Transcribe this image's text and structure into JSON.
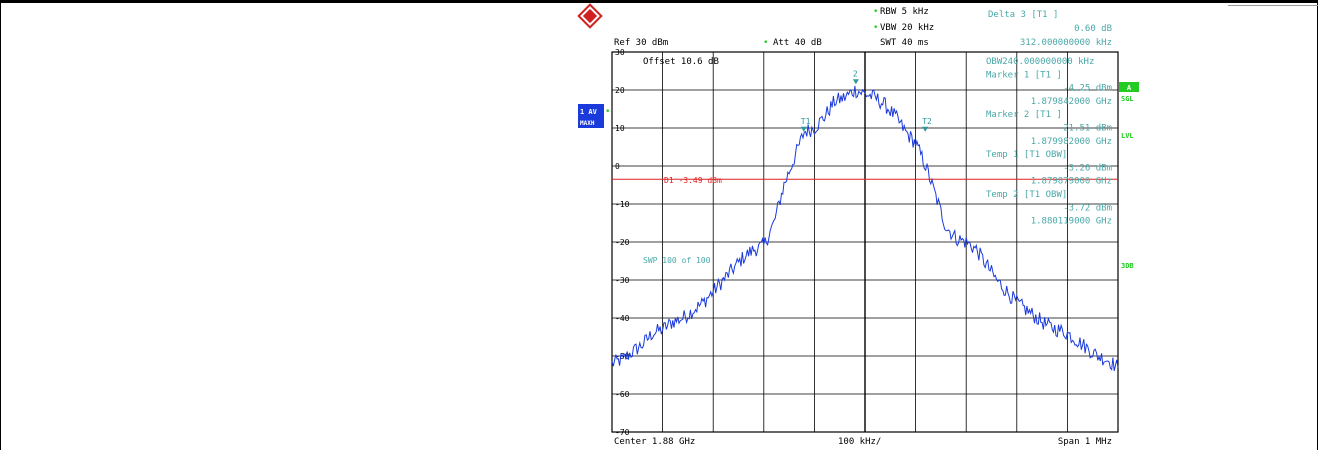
{
  "header": {
    "rbw": "RBW  5 kHz",
    "vbw": "VBW  20 kHz",
    "swt": "SWT  40 ms",
    "ref": "Ref   30 dBm",
    "att": "Att   40 dB",
    "delta_title": "Delta 3 [T1 ]",
    "delta_value": "0.60 dB",
    "delta_freq": "312.000000000 kHz"
  },
  "side_labels": {
    "trace_mode_1": "1 AV",
    "trace_mode_2": "MAXH",
    "a": "A",
    "sgl": "SGL",
    "lvl": "LVL",
    "3db": "3DB"
  },
  "readout": [
    "OBW240.000000000 kHz",
    "Marker 1 [T1 ]",
    "-4.25 dBm",
    "1.879842000 GHz",
    "Marker 2 [T1 ]",
    "21.51 dBm",
    "1.879982000 GHz",
    "Temp 1 [T1 OBW]",
    "-3.26 dBm",
    "1.879879000 GHz",
    "Temp 2 [T1 OBW]",
    "-3.72 dBm",
    "1.880119000 GHz"
  ],
  "plot_text": {
    "offset": "Offset   10.6 dB",
    "d1": "D1 -3.49 dBm",
    "swp": "SWP   100 of   100",
    "marker_t1": "T1",
    "marker_2": "2",
    "marker_t2": "T2"
  },
  "footer": {
    "center": "Center  1.88 GHz",
    "span_per_div": "100 kHz/",
    "span": "Span  1 MHz"
  },
  "colors": {
    "trace": "#1a3adc",
    "display_line": "#e02020",
    "annotation": "#4aa8a8",
    "marker": "#2a9a9a",
    "status_green": "#22cc22",
    "panel_blue": "#1a3adc"
  },
  "chart_data": {
    "type": "line",
    "title": "",
    "xlabel": "",
    "ylabel": "",
    "x_unit": "GHz",
    "y_unit": "dBm",
    "xlim": [
      1.8795,
      1.8805
    ],
    "ylim": [
      -70,
      30
    ],
    "y_ticks": [
      30,
      20,
      10,
      0,
      -10,
      -20,
      -30,
      -40,
      -50,
      -60,
      -70
    ],
    "y_tick_labels": [
      "30",
      "20",
      "10",
      "0",
      "-10",
      "-20",
      "-30",
      "-40",
      "-50",
      "-60",
      "-70"
    ],
    "grid": true,
    "display_line": {
      "label": "D1 -3.49 dBm",
      "y": -3.49
    },
    "markers": [
      {
        "label": "T1",
        "x": 1.879879,
        "y": 9
      },
      {
        "label": "2",
        "x": 1.879982,
        "y": 21.5
      },
      {
        "label": "T2",
        "x": 1.880119,
        "y": 9
      }
    ],
    "series": [
      {
        "x": [
          1.8795,
          1.87952,
          1.87954,
          1.87956,
          1.87958,
          1.8796,
          1.87962,
          1.87964,
          1.87966,
          1.87968,
          1.8797,
          1.87972,
          1.87974,
          1.87976,
          1.87978,
          1.8798,
          1.87982,
          1.87984,
          1.87986,
          1.87988,
          1.8799,
          1.87992,
          1.87994,
          1.87996,
          1.87998,
          1.88,
          1.88002,
          1.88004,
          1.88006,
          1.88008,
          1.8801,
          1.88012,
          1.88014,
          1.88016,
          1.88018,
          1.8802,
          1.88022,
          1.88024,
          1.88026,
          1.88028,
          1.8803,
          1.88032,
          1.88034,
          1.88036,
          1.88038,
          1.8804,
          1.88042,
          1.88044,
          1.88046,
          1.88048,
          1.8805
        ],
        "y": [
          -52,
          -51,
          -49,
          -47,
          -44,
          -43,
          -41,
          -40,
          -38,
          -36,
          -33,
          -30,
          -27,
          -24,
          -22,
          -21,
          -15,
          -5,
          2,
          9,
          10,
          13,
          17,
          18,
          20,
          19,
          18,
          16,
          13,
          9,
          6,
          0,
          -8,
          -16,
          -19,
          -20,
          -22,
          -26,
          -30,
          -33,
          -36,
          -38,
          -40,
          -42,
          -43,
          -44,
          -46,
          -48,
          -50,
          -51,
          -53
        ]
      }
    ]
  }
}
